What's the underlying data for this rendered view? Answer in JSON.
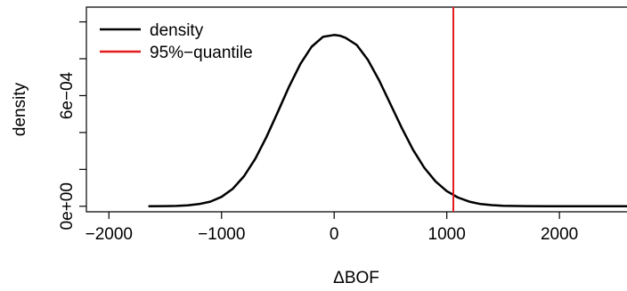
{
  "chart_data": {
    "type": "line",
    "title": "",
    "xlabel": "ΔBOF",
    "ylabel": "density",
    "xlim": [
      -2200,
      2600
    ],
    "ylim": [
      -3e-05,
      0.00108
    ],
    "x_ticks": [
      -2000,
      -1000,
      0,
      1000,
      2000
    ],
    "x_tick_labels": [
      "−2000",
      "−1000",
      "0",
      "1000",
      "2000"
    ],
    "y_ticks": [
      0,
      0.0002,
      0.0004,
      0.0006,
      0.0008,
      0.001
    ],
    "y_tick_labels": [
      "0e+00",
      "",
      "",
      "6e−04",
      "",
      ""
    ],
    "grid": false,
    "legend_position": "top-left",
    "series": [
      {
        "name": "density",
        "color": "#000000",
        "x": [
          -1650,
          -1500,
          -1400,
          -1300,
          -1200,
          -1100,
          -1000,
          -900,
          -800,
          -700,
          -600,
          -500,
          -400,
          -300,
          -200,
          -100,
          0,
          50,
          100,
          200,
          300,
          400,
          500,
          600,
          700,
          800,
          900,
          1000,
          1100,
          1200,
          1300,
          1400,
          1500,
          1700,
          1900,
          2200,
          2600
        ],
        "y": [
          0.0,
          1e-06,
          2e-06,
          5e-06,
          1.2e-05,
          2.5e-05,
          5.1e-05,
          9.5e-05,
          0.000163,
          0.000258,
          0.000377,
          0.000512,
          0.000649,
          0.000772,
          0.000865,
          0.000919,
          0.000929,
          0.000925,
          0.000914,
          0.000875,
          0.000794,
          0.000682,
          0.000554,
          0.000425,
          0.000307,
          0.000209,
          0.000135,
          8.2e-05,
          4.7e-05,
          2.5e-05,
          1.2e-05,
          6e-06,
          3e-06,
          1e-06,
          0.0,
          0.0,
          0.0
        ]
      }
    ],
    "quantile": {
      "name": "95%−quantile",
      "x": 1058,
      "color": "#e41a1c"
    }
  }
}
